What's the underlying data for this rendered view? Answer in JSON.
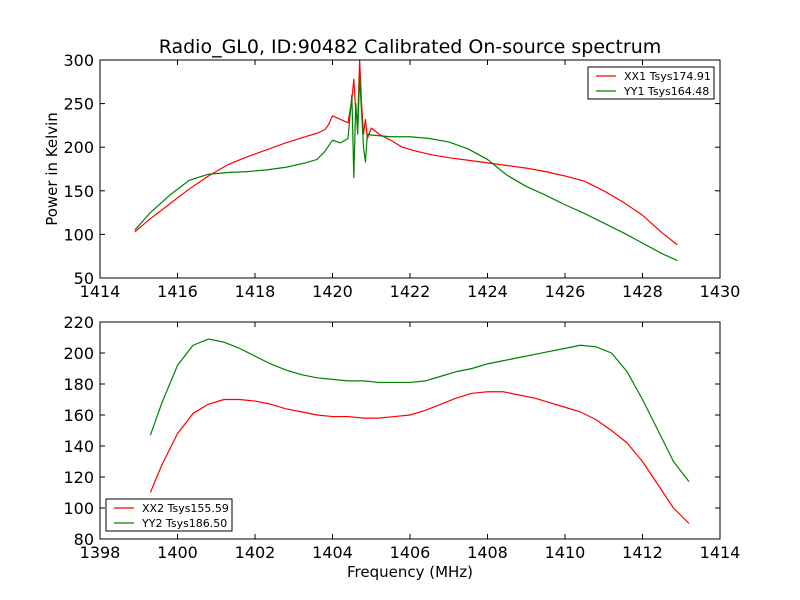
{
  "chart_data": [
    {
      "type": "line",
      "title": "Radio_GL0, ID:90482 Calibrated On-source spectrum",
      "xlabel": "",
      "ylabel": "Power in Kelvin",
      "xlim": [
        1414,
        1430
      ],
      "ylim": [
        50,
        300
      ],
      "xticks": [
        "1414",
        "1416",
        "1418",
        "1420",
        "1422",
        "1424",
        "1426",
        "1428",
        "1430"
      ],
      "yticks": [
        "50",
        "100",
        "150",
        "200",
        "250",
        "300"
      ],
      "grid": false,
      "legend_position": "top-right",
      "series": [
        {
          "name": "XX1 Tsys174.91",
          "color": "#ff0000",
          "x": [
            1414.9,
            1415.3,
            1415.8,
            1416.3,
            1416.8,
            1417.3,
            1417.8,
            1418.3,
            1418.8,
            1419.3,
            1419.6,
            1419.8,
            1419.9,
            1420.0,
            1420.2,
            1420.4,
            1420.5,
            1420.55,
            1420.6,
            1420.65,
            1420.7,
            1420.75,
            1420.8,
            1420.85,
            1420.9,
            1421.0,
            1421.2,
            1421.5,
            1421.8,
            1422.2,
            1422.6,
            1423.0,
            1423.5,
            1424.0,
            1424.5,
            1425.0,
            1425.5,
            1426.0,
            1426.5,
            1427.0,
            1427.5,
            1428.0,
            1428.5,
            1428.9
          ],
          "values": [
            103,
            118,
            135,
            152,
            167,
            180,
            189,
            197,
            205,
            212,
            216,
            220,
            226,
            236,
            232,
            228,
            255,
            278,
            240,
            230,
            300,
            250,
            215,
            232,
            210,
            222,
            215,
            208,
            200,
            195,
            191,
            188,
            185,
            182,
            179,
            176,
            172,
            167,
            161,
            150,
            137,
            122,
            102,
            88
          ]
        },
        {
          "name": "YY1 Tsys164.48",
          "color": "#008000",
          "x": [
            1414.9,
            1415.3,
            1415.8,
            1416.3,
            1416.8,
            1417.3,
            1417.8,
            1418.3,
            1418.8,
            1419.3,
            1419.6,
            1419.8,
            1420.0,
            1420.2,
            1420.4,
            1420.5,
            1420.55,
            1420.6,
            1420.65,
            1420.7,
            1420.75,
            1420.8,
            1420.85,
            1420.9,
            1421.0,
            1421.5,
            1422.0,
            1422.5,
            1423.0,
            1423.5,
            1424.0,
            1424.5,
            1425.0,
            1425.5,
            1426.0,
            1426.5,
            1427.0,
            1427.5,
            1428.0,
            1428.5,
            1428.9
          ],
          "values": [
            105,
            125,
            145,
            162,
            169,
            171,
            172,
            174,
            177,
            182,
            186,
            195,
            208,
            205,
            210,
            260,
            165,
            250,
            215,
            282,
            240,
            200,
            183,
            215,
            214,
            212,
            212,
            210,
            206,
            198,
            186,
            168,
            155,
            145,
            134,
            124,
            113,
            102,
            90,
            78,
            70
          ]
        }
      ]
    },
    {
      "type": "line",
      "title": "",
      "xlabel": "Frequency (MHz)",
      "ylabel": "",
      "xlim": [
        1398,
        1414
      ],
      "ylim": [
        80,
        220
      ],
      "xticks": [
        "1398",
        "1400",
        "1402",
        "1404",
        "1406",
        "1408",
        "1410",
        "1412",
        "1414"
      ],
      "yticks": [
        "80",
        "100",
        "120",
        "140",
        "160",
        "180",
        "200",
        "220"
      ],
      "grid": false,
      "legend_position": "bottom-left",
      "series": [
        {
          "name": "XX2 Tsys155.59",
          "color": "#ff0000",
          "x": [
            1399.3,
            1399.6,
            1400.0,
            1400.4,
            1400.8,
            1401.2,
            1401.6,
            1402.0,
            1402.4,
            1402.8,
            1403.2,
            1403.6,
            1404.0,
            1404.4,
            1404.8,
            1405.2,
            1405.6,
            1406.0,
            1406.4,
            1406.8,
            1407.2,
            1407.6,
            1408.0,
            1408.4,
            1408.8,
            1409.2,
            1409.6,
            1410.0,
            1410.4,
            1410.8,
            1411.2,
            1411.6,
            1412.0,
            1412.4,
            1412.8,
            1413.2
          ],
          "values": [
            110,
            128,
            148,
            161,
            167,
            170,
            170,
            169,
            167,
            164,
            162,
            160,
            159,
            159,
            158,
            158,
            159,
            160,
            163,
            167,
            171,
            174,
            175,
            175,
            173,
            171,
            168,
            165,
            162,
            157,
            150,
            142,
            130,
            115,
            100,
            90
          ]
        },
        {
          "name": "YY2 Tsys186.50",
          "color": "#008000",
          "x": [
            1399.3,
            1399.6,
            1400.0,
            1400.4,
            1400.8,
            1401.2,
            1401.6,
            1402.0,
            1402.4,
            1402.8,
            1403.2,
            1403.6,
            1404.0,
            1404.4,
            1404.8,
            1405.2,
            1405.6,
            1406.0,
            1406.4,
            1406.8,
            1407.2,
            1407.6,
            1408.0,
            1408.4,
            1408.8,
            1409.2,
            1409.6,
            1410.0,
            1410.4,
            1410.8,
            1411.2,
            1411.6,
            1412.0,
            1412.4,
            1412.8,
            1413.2
          ],
          "values": [
            147,
            168,
            192,
            205,
            209,
            207,
            203,
            198,
            193,
            189,
            186,
            184,
            183,
            182,
            182,
            181,
            181,
            181,
            182,
            185,
            188,
            190,
            193,
            195,
            197,
            199,
            201,
            203,
            205,
            204,
            200,
            188,
            170,
            150,
            130,
            117
          ]
        }
      ]
    }
  ]
}
